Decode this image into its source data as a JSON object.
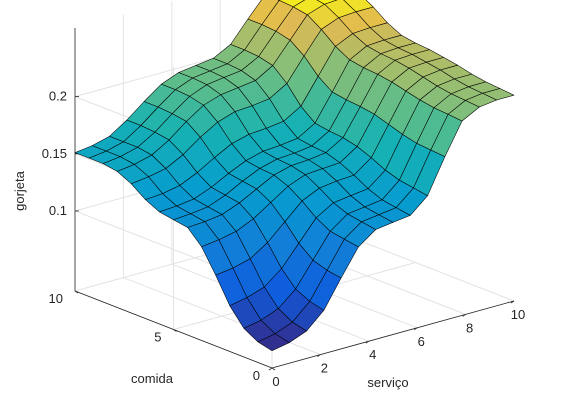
{
  "chart_data": {
    "type": "surface",
    "title": "",
    "xlabel": "serviço",
    "ylabel": "comida",
    "zlabel": "gorjeta",
    "xlim": [
      0,
      10
    ],
    "ylim": [
      0,
      10
    ],
    "zlim": [
      0.03,
      0.26
    ],
    "xticks": [
      0,
      2,
      4,
      6,
      8,
      10
    ],
    "yticks": [
      0,
      5,
      10
    ],
    "zticks": [
      0.1,
      0.15,
      0.2
    ],
    "xtick_labels": [
      "0",
      "2",
      "4",
      "6",
      "8",
      "10"
    ],
    "ytick_labels": [
      "0",
      "5",
      "10"
    ],
    "ztick_labels": [
      "0.1",
      "0.15",
      "0.2"
    ],
    "grid": true,
    "colormap": "parula",
    "x": [
      0,
      0.7143,
      1.4286,
      2.1429,
      2.8571,
      3.5714,
      4.2857,
      5,
      5.7143,
      6.4286,
      7.1429,
      7.8571,
      8.5714,
      9.2857,
      10
    ],
    "y": [
      0,
      0.7143,
      1.4286,
      2.1429,
      2.8571,
      3.5714,
      4.2857,
      5,
      5.7143,
      6.4286,
      7.1429,
      7.8571,
      8.5714,
      9.2857,
      10
    ],
    "z": [
      [
        0.045,
        0.048,
        0.054,
        0.068,
        0.092,
        0.115,
        0.126,
        0.128,
        0.13,
        0.143,
        0.173,
        0.2,
        0.208,
        0.21,
        0.21
      ],
      [
        0.048,
        0.051,
        0.057,
        0.071,
        0.094,
        0.117,
        0.128,
        0.13,
        0.132,
        0.145,
        0.174,
        0.201,
        0.209,
        0.211,
        0.211
      ],
      [
        0.055,
        0.058,
        0.064,
        0.077,
        0.098,
        0.119,
        0.13,
        0.132,
        0.134,
        0.147,
        0.175,
        0.202,
        0.21,
        0.212,
        0.212
      ],
      [
        0.07,
        0.073,
        0.078,
        0.09,
        0.108,
        0.126,
        0.135,
        0.137,
        0.139,
        0.151,
        0.178,
        0.204,
        0.212,
        0.214,
        0.214
      ],
      [
        0.092,
        0.094,
        0.098,
        0.108,
        0.122,
        0.136,
        0.143,
        0.145,
        0.146,
        0.157,
        0.182,
        0.207,
        0.215,
        0.217,
        0.217
      ],
      [
        0.112,
        0.114,
        0.117,
        0.124,
        0.134,
        0.144,
        0.15,
        0.151,
        0.152,
        0.162,
        0.186,
        0.21,
        0.218,
        0.219,
        0.219
      ],
      [
        0.124,
        0.125,
        0.127,
        0.133,
        0.141,
        0.149,
        0.153,
        0.154,
        0.156,
        0.165,
        0.188,
        0.212,
        0.22,
        0.221,
        0.221
      ],
      [
        0.126,
        0.127,
        0.129,
        0.135,
        0.143,
        0.15,
        0.154,
        0.155,
        0.157,
        0.166,
        0.189,
        0.213,
        0.221,
        0.222,
        0.222
      ],
      [
        0.128,
        0.129,
        0.131,
        0.137,
        0.145,
        0.152,
        0.156,
        0.157,
        0.159,
        0.168,
        0.191,
        0.215,
        0.223,
        0.224,
        0.224
      ],
      [
        0.134,
        0.135,
        0.138,
        0.145,
        0.154,
        0.162,
        0.166,
        0.167,
        0.169,
        0.178,
        0.2,
        0.222,
        0.229,
        0.23,
        0.23
      ],
      [
        0.143,
        0.145,
        0.148,
        0.156,
        0.167,
        0.176,
        0.181,
        0.182,
        0.184,
        0.193,
        0.213,
        0.232,
        0.238,
        0.239,
        0.239
      ],
      [
        0.149,
        0.151,
        0.155,
        0.164,
        0.176,
        0.186,
        0.191,
        0.193,
        0.195,
        0.204,
        0.222,
        0.24,
        0.245,
        0.246,
        0.246
      ],
      [
        0.151,
        0.153,
        0.157,
        0.166,
        0.178,
        0.189,
        0.195,
        0.197,
        0.199,
        0.207,
        0.225,
        0.242,
        0.247,
        0.248,
        0.248
      ],
      [
        0.151,
        0.153,
        0.157,
        0.167,
        0.179,
        0.19,
        0.196,
        0.198,
        0.2,
        0.208,
        0.226,
        0.243,
        0.248,
        0.249,
        0.249
      ],
      [
        0.151,
        0.153,
        0.157,
        0.167,
        0.179,
        0.19,
        0.196,
        0.198,
        0.2,
        0.208,
        0.226,
        0.243,
        0.248,
        0.249,
        0.249
      ]
    ]
  }
}
